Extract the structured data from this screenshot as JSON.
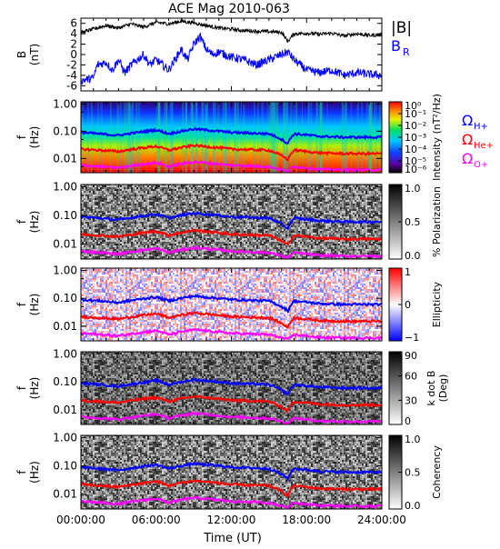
{
  "chart_data": {
    "type": "spectrogram",
    "title": "ACE Mag 2010-063",
    "xlabel": "Time (UT)",
    "xlim": [
      "00:00:00",
      "24:00:00"
    ],
    "xticks": [
      "00:00:00",
      "06:00:00",
      "12:00:00",
      "18:00:00",
      "24:00:00"
    ],
    "panels": [
      {
        "id": "field",
        "type": "line",
        "ylabel_main": "B",
        "ylabel_unit": "(nT)",
        "ylim": [
          -7,
          7
        ],
        "yticks": [
          "6",
          "4",
          "2",
          "0",
          "-2",
          "-4",
          "-6"
        ],
        "yvals": [
          6,
          4,
          2,
          0,
          -2,
          -4,
          -6
        ],
        "series": [
          {
            "name": "|B|",
            "color": "#000000",
            "points": [
              [
                0,
                4.2
              ],
              [
                1,
                4.9
              ],
              [
                2,
                5.6
              ],
              [
                3,
                5.1
              ],
              [
                4,
                5.9
              ],
              [
                5,
                5.3
              ],
              [
                6,
                6.2
              ],
              [
                7,
                5.9
              ],
              [
                8,
                6.4
              ],
              [
                9,
                6.1
              ],
              [
                10,
                5.6
              ],
              [
                11,
                5.1
              ],
              [
                12,
                4.9
              ],
              [
                13,
                4.6
              ],
              [
                14,
                4.5
              ],
              [
                15,
                4.4
              ],
              [
                16,
                4.3
              ],
              [
                16.5,
                2.5
              ],
              [
                17,
                4.0
              ],
              [
                18,
                4.1
              ],
              [
                19,
                3.9
              ],
              [
                20,
                4.1
              ],
              [
                21,
                3.6
              ],
              [
                22,
                4.0
              ],
              [
                23,
                3.7
              ],
              [
                24,
                3.8
              ]
            ]
          },
          {
            "name_main": "B",
            "name_sub": "R",
            "color": "#0000ff",
            "points": [
              [
                0,
                -5
              ],
              [
                1,
                -4.5
              ],
              [
                1.3,
                -2
              ],
              [
                2,
                -1.5
              ],
              [
                2.5,
                -3
              ],
              [
                3,
                -1
              ],
              [
                3.5,
                -3.5
              ],
              [
                4,
                -2
              ],
              [
                5,
                0
              ],
              [
                5.5,
                -2
              ],
              [
                6,
                -1
              ],
              [
                7,
                -3
              ],
              [
                7.5,
                -1
              ],
              [
                8,
                1
              ],
              [
                8.5,
                -1
              ],
              [
                9,
                2
              ],
              [
                9.5,
                3.5
              ],
              [
                10,
                1
              ],
              [
                10.5,
                0
              ],
              [
                11,
                0.5
              ],
              [
                12,
                -0.5
              ],
              [
                13,
                -1
              ],
              [
                14,
                -2
              ],
              [
                15,
                -1
              ],
              [
                16,
                0
              ],
              [
                16.5,
                0.5
              ],
              [
                17,
                -1
              ],
              [
                18,
                -3
              ],
              [
                19,
                -3.5
              ],
              [
                20,
                -3
              ],
              [
                21,
                -4
              ],
              [
                22,
                -3.5
              ],
              [
                23,
                -3.8
              ],
              [
                24,
                -4
              ]
            ]
          }
        ]
      },
      {
        "id": "intensity",
        "type": "heatmap",
        "ylabel_main": "f",
        "ylabel_unit": "(Hz)",
        "colorbar_label": "Intensity (nT²/Hz)",
        "colorbar_ticks": [
          "10⁰",
          "10⁻¹",
          "10⁻²",
          "10⁻³",
          "10⁻⁴",
          "10⁻⁵",
          "10⁻⁶"
        ],
        "colorscale": "rainbow"
      },
      {
        "id": "polarization",
        "type": "heatmap",
        "ylabel_main": "f",
        "ylabel_unit": "(Hz)",
        "colorbar_label": "% Polarization",
        "colorbar_ticks": [
          "1.0",
          "0.5",
          "0.0"
        ],
        "colorscale": "gray"
      },
      {
        "id": "ellipticity",
        "type": "heatmap",
        "ylabel_main": "f",
        "ylabel_unit": "(Hz)",
        "colorbar_label": "Ellipticity",
        "colorbar_ticks": [
          "1",
          "0",
          "−1"
        ],
        "colorscale": "bwr"
      },
      {
        "id": "kdotb",
        "type": "heatmap",
        "ylabel_main": "f",
        "ylabel_unit": "(Hz)",
        "colorbar_label": "k dot B",
        "colorbar_label2": "(Deg)",
        "colorbar_ticks": [
          "90",
          "60",
          "30",
          "0"
        ],
        "colorscale": "gray"
      },
      {
        "id": "coherency",
        "type": "heatmap",
        "ylabel_main": "f",
        "ylabel_unit": "(Hz)",
        "colorbar_label": "Coherency",
        "colorbar_ticks": [
          "1.0",
          "0.5",
          "0.0"
        ],
        "colorscale": "gray"
      }
    ],
    "freq_yticks": [
      "1.00",
      "0.10",
      "0.01"
    ],
    "freq_yvals": [
      1.0,
      0.1,
      0.01
    ],
    "freq_ylim": [
      0.003,
      1.2
    ],
    "freq_scale": "log",
    "gyro_series": [
      {
        "label_main": "Ω",
        "label_sub": "H+",
        "color": "#0000ff",
        "points": [
          [
            0,
            0.09
          ],
          [
            3,
            0.07
          ],
          [
            6,
            0.11
          ],
          [
            7,
            0.08
          ],
          [
            9,
            0.12
          ],
          [
            12,
            0.09
          ],
          [
            15,
            0.08
          ],
          [
            16.5,
            0.035
          ],
          [
            17,
            0.08
          ],
          [
            19,
            0.065
          ],
          [
            21,
            0.06
          ],
          [
            24,
            0.06
          ]
        ]
      },
      {
        "label_main": "Ω",
        "label_sub": "He+",
        "color": "#ff0000",
        "points": [
          [
            0,
            0.022
          ],
          [
            3,
            0.018
          ],
          [
            6,
            0.028
          ],
          [
            7,
            0.02
          ],
          [
            9,
            0.03
          ],
          [
            12,
            0.022
          ],
          [
            15,
            0.02
          ],
          [
            16.5,
            0.009
          ],
          [
            17,
            0.02
          ],
          [
            19,
            0.016
          ],
          [
            21,
            0.015
          ],
          [
            24,
            0.015
          ]
        ]
      },
      {
        "label_main": "Ω",
        "label_sub": "O+",
        "color": "#ff00ff",
        "points": [
          [
            0,
            0.0056
          ],
          [
            3,
            0.0045
          ],
          [
            6,
            0.007
          ],
          [
            7,
            0.005
          ],
          [
            9,
            0.0075
          ],
          [
            12,
            0.0056
          ],
          [
            15,
            0.005
          ],
          [
            16.5,
            0.0033
          ],
          [
            17,
            0.005
          ],
          [
            19,
            0.004
          ],
          [
            21,
            0.0038
          ],
          [
            24,
            0.0038
          ]
        ]
      }
    ]
  }
}
